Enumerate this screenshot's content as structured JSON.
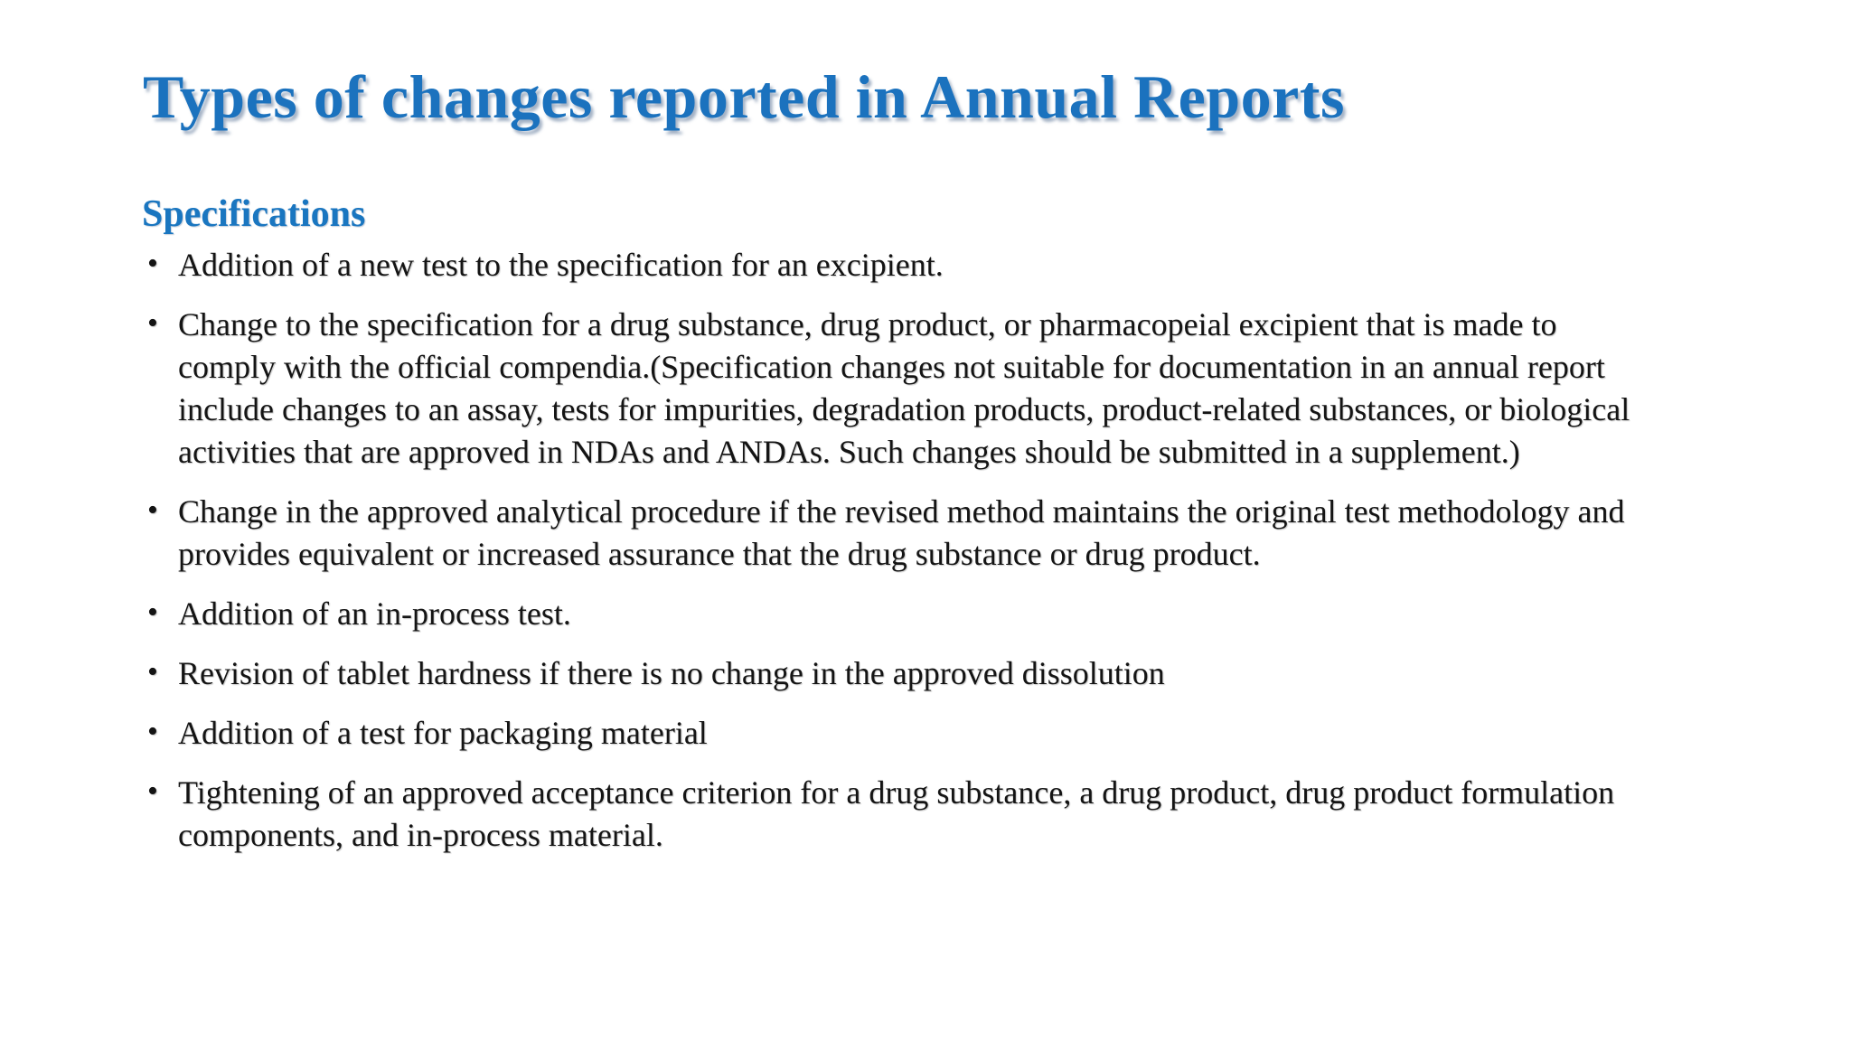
{
  "slide": {
    "title": "Types of changes reported in Annual Reports",
    "section_heading": "Specifications",
    "bullets": [
      "Addition of a new test to the specification for an excipient.",
      "Change to the specification for a drug substance, drug product, or pharmacopeial excipient that is made to comply with the official compendia.(Specification changes not suitable for documentation in an annual report include changes to an assay, tests for impurities, degradation products, product-related substances, or biological activities that are approved in NDAs and ANDAs. Such changes should be submitted in a supplement.)",
      "Change in the approved analytical procedure if the revised method maintains the original test methodology and provides equivalent or increased assurance that the drug substance or drug product.",
      "Addition of an in-process test.",
      "Revision of tablet hardness if there is no change in the approved dissolution",
      "Addition of a test for packaging material",
      "Tightening of an approved acceptance criterion for a drug substance, a drug product, drug product formulation components, and in-process material."
    ],
    "colors": {
      "accent_blue": "#1b72be",
      "body_text": "#141414",
      "background": "#ffffff"
    }
  }
}
